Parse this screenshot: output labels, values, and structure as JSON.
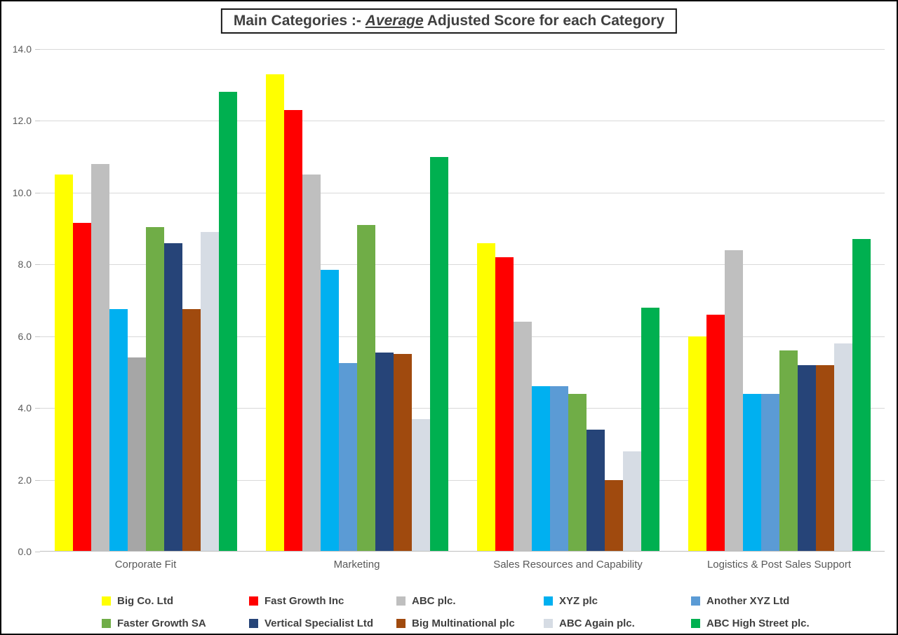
{
  "title": {
    "prefix": "Main Categories :- ",
    "emphasis": "Average",
    "suffix": " Adjusted Score for each Category"
  },
  "chart_data": {
    "type": "bar",
    "title": "Main Categories :- Average Adjusted Score for each Category",
    "categories": [
      "Corporate Fit",
      "Marketing",
      "Sales Resources and Capability",
      "Logistics & Post Sales Support"
    ],
    "series": [
      {
        "name": "Big Co. Ltd",
        "color": "#FFFF00",
        "values": [
          10.5,
          13.3,
          8.6,
          6.0
        ]
      },
      {
        "name": "Fast Growth Inc",
        "color": "#FF0000",
        "values": [
          9.15,
          12.3,
          8.2,
          6.6
        ]
      },
      {
        "name": "ABC plc.",
        "color": "#BFBFBF",
        "values": [
          10.8,
          10.5,
          6.4,
          8.4
        ]
      },
      {
        "name": "XYZ plc",
        "color": "#00B0F0",
        "values": [
          6.75,
          7.85,
          4.6,
          4.4
        ]
      },
      {
        "name": "Another XYZ Ltd",
        "color": "#5B9BD5",
        "values": [
          5.4,
          5.25,
          4.6,
          4.4
        ]
      },
      {
        "name": "Faster Growth SA",
        "color": "#70AD47",
        "values": [
          9.05,
          9.1,
          4.4,
          5.6
        ]
      },
      {
        "name": "Vertical Specialist Ltd",
        "color": "#264478",
        "values": [
          8.6,
          5.55,
          3.4,
          5.2
        ]
      },
      {
        "name": "Big Multinational plc",
        "color": "#A04A0E",
        "values": [
          6.75,
          5.5,
          2.0,
          5.2
        ]
      },
      {
        "name": "ABC Again plc.",
        "color": "#D6DCE4",
        "values": [
          8.9,
          3.7,
          2.8,
          5.8
        ]
      },
      {
        "name": "ABC High Street plc.",
        "color": "#00B050",
        "values": [
          12.8,
          11.0,
          6.8,
          8.7
        ]
      }
    ],
    "point_color_overrides": [
      {
        "category": "Corporate Fit",
        "series": "Another XYZ Ltd",
        "color": "#A6A6A6"
      }
    ],
    "xlabel": "",
    "ylabel": "",
    "ylim": [
      0,
      14
    ],
    "ytick_step": 2,
    "ytick_labels": [
      "0.0",
      "2.0",
      "4.0",
      "6.0",
      "8.0",
      "10.0",
      "12.0",
      "14.0"
    ],
    "grid": true,
    "legend_position": "bottom",
    "legend_columns": 5
  }
}
